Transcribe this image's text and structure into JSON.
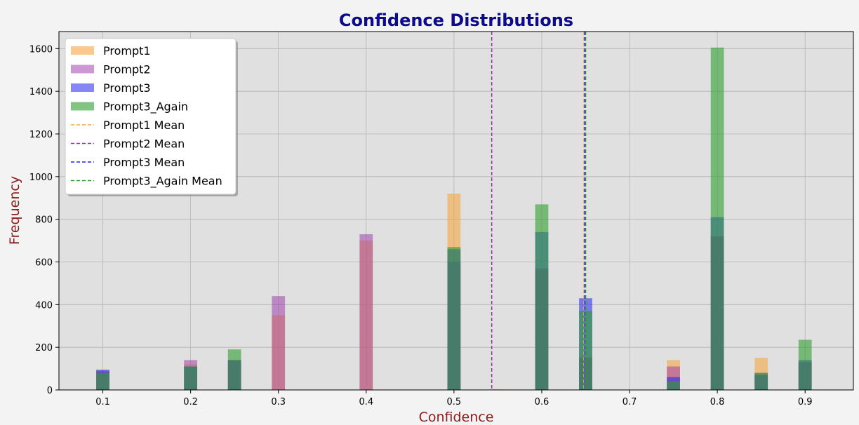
{
  "chart_data": {
    "type": "bar",
    "title": "Confidence Distributions",
    "xlabel": "Confidence",
    "ylabel": "Frequency",
    "xlim": [
      0.05,
      0.955
    ],
    "ylim": [
      0,
      1680
    ],
    "xticks": [
      0.1,
      0.2,
      0.3,
      0.4,
      0.5,
      0.6,
      0.7,
      0.8,
      0.9
    ],
    "xtick_labels": [
      "0.1",
      "0.2",
      "0.3",
      "0.4",
      "0.5",
      "0.6",
      "0.7",
      "0.8",
      "0.9"
    ],
    "yticks": [
      0,
      200,
      400,
      600,
      800,
      1000,
      1200,
      1400,
      1600
    ],
    "ytick_labels": [
      "0",
      "200",
      "400",
      "600",
      "800",
      "1000",
      "1200",
      "1400",
      "1600"
    ],
    "grid": true,
    "legend_position": "top-left",
    "bin_width": 0.015,
    "bins": [
      0.1,
      0.2,
      0.25,
      0.3,
      0.4,
      0.5,
      0.55,
      0.6,
      0.65,
      0.75,
      0.8,
      0.85,
      0.9
    ],
    "series": [
      {
        "name": "Prompt1",
        "color": "#f5a742",
        "alpha": 0.6,
        "values": [
          85,
          120,
          140,
          350,
          700,
          920,
          3,
          560,
          155,
          140,
          720,
          150,
          130
        ]
      },
      {
        "name": "Prompt2",
        "color": "#9932a8",
        "alpha": 0.5,
        "values": [
          90,
          140,
          140,
          440,
          730,
          600,
          0,
          570,
          150,
          110,
          720,
          80,
          130
        ]
      },
      {
        "name": "Prompt3",
        "color": "#2222ee",
        "alpha": 0.55,
        "values": [
          95,
          110,
          140,
          0,
          0,
          660,
          0,
          740,
          430,
          60,
          810,
          70,
          140
        ]
      },
      {
        "name": "Prompt3_Again",
        "color": "#2e9e2e",
        "alpha": 0.6,
        "values": [
          80,
          110,
          190,
          0,
          0,
          670,
          0,
          870,
          370,
          40,
          1605,
          80,
          235
        ]
      }
    ],
    "means": [
      {
        "name": "Prompt1 Mean",
        "color": "#f5a742",
        "x": 0.648
      },
      {
        "name": "Prompt2 Mean",
        "color": "#9932a8",
        "x": 0.543
      },
      {
        "name": "Prompt3 Mean",
        "color": "#2222ee",
        "x": 0.649
      },
      {
        "name": "Prompt3_Again Mean",
        "color": "#2e9e2e",
        "x": 0.65
      }
    ],
    "colors": {
      "background": "#f3f3f3",
      "plot_bg": "#e0e0e0",
      "title": "#0b0b8c",
      "axis_label": "#8b1a1a"
    }
  }
}
